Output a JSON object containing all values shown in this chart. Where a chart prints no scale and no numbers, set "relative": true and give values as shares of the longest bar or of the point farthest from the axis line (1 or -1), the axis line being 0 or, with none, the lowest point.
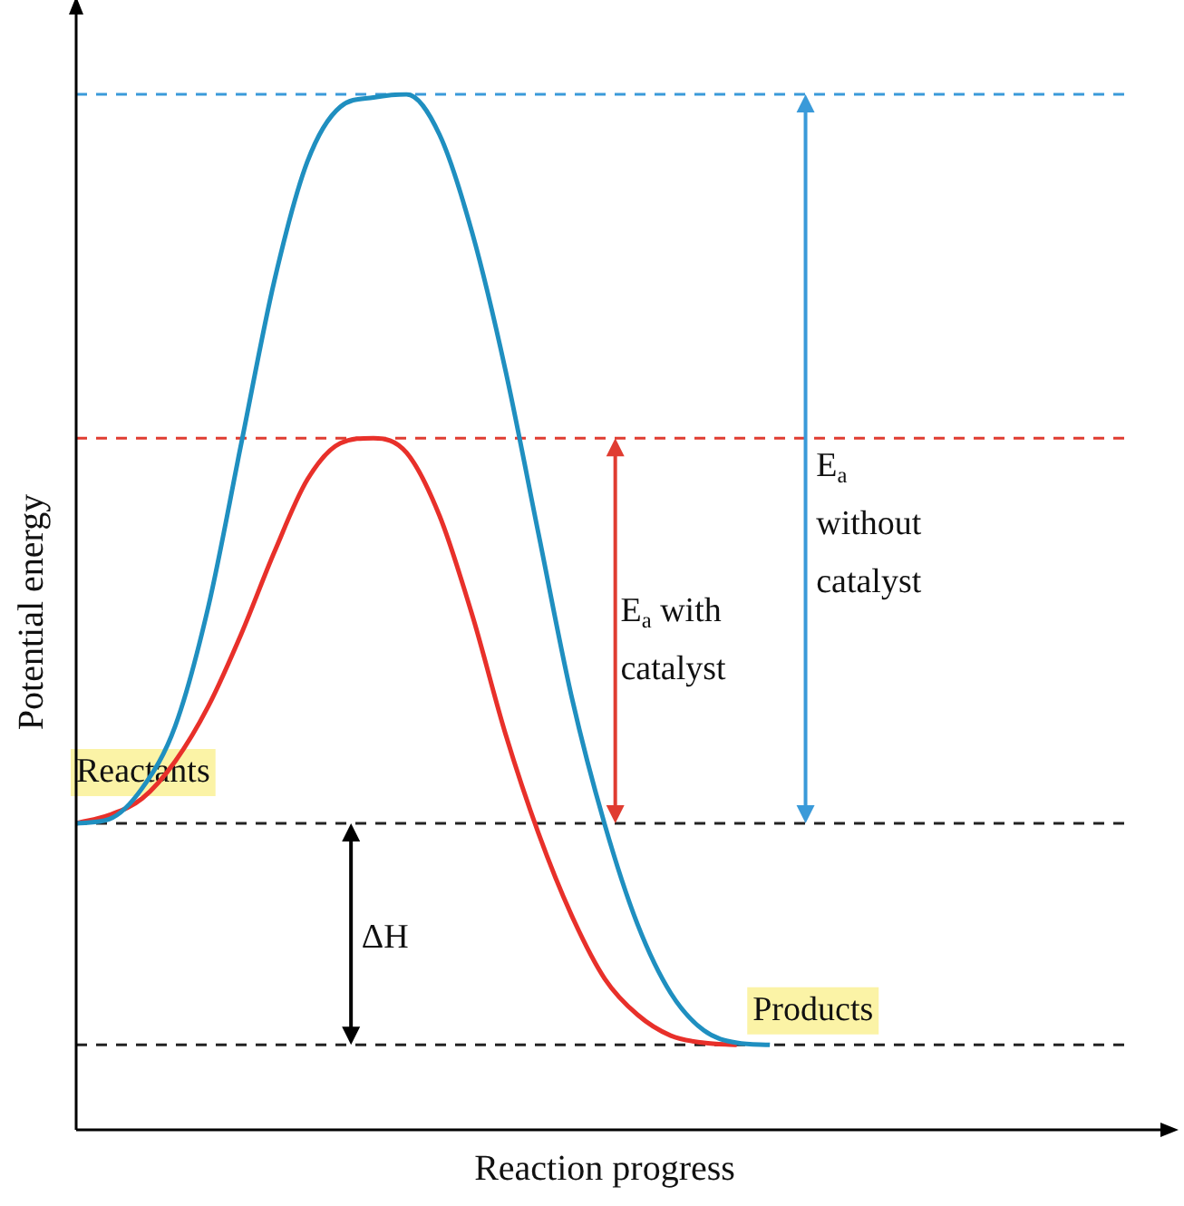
{
  "chart_data": {
    "type": "line",
    "relative": true,
    "xlabel": "Reaction progress",
    "ylabel": "Potential energy",
    "grid": false,
    "legend": false,
    "marker": "none",
    "line_style": "solid",
    "categories": [
      null,
      null,
      null,
      null,
      null,
      null,
      null,
      null,
      null,
      null,
      null,
      null,
      null,
      null,
      null,
      null,
      null,
      null,
      null,
      null,
      null,
      null,
      null,
      null,
      null,
      null,
      null,
      null,
      null,
      null,
      null,
      null,
      null
    ],
    "series": [
      {
        "color": "#1f8fc0",
        "values": [
          0.296,
          0.3,
          0.33,
          0.39,
          0.505,
          0.663,
          0.82,
          0.935,
          0.988,
          0.997,
          1.0,
          0.961,
          0.865,
          0.733,
          0.575,
          0.418,
          0.295,
          0.198,
          0.132,
          0.096,
          0.084,
          0.082,
          null,
          null,
          null,
          null,
          null,
          null,
          null,
          null,
          null,
          null,
          null
        ]
      },
      {
        "color": "#e8302a",
        "values": [
          0.296,
          0.304,
          0.32,
          0.356,
          0.409,
          0.479,
          0.558,
          0.628,
          0.663,
          0.668,
          0.654,
          0.593,
          0.496,
          0.382,
          0.286,
          0.207,
          0.146,
          0.111,
          0.091,
          0.084,
          0.082,
          null,
          null,
          null,
          null,
          null,
          null,
          null,
          null,
          null,
          null,
          null,
          null
        ]
      }
    ],
    "ref_lines": [
      {
        "axis": "y",
        "value": 0.296,
        "color": "#222222",
        "line_style": "dashed"
      },
      {
        "axis": "y",
        "value": 0.082,
        "color": "#222222",
        "line_style": "dashed"
      },
      {
        "axis": "y",
        "value": 1.0,
        "color": "#3a9ad9",
        "line_style": "dashed"
      },
      {
        "axis": "y",
        "value": 0.668,
        "color": "#e03c31",
        "line_style": "dashed"
      }
    ],
    "annotations": [
      "Reactants",
      "Products",
      "E$_{a}$ with\ncatalyst",
      "E$_{a}$\nwithout\ncatalyst",
      "ΔH"
    ]
  }
}
